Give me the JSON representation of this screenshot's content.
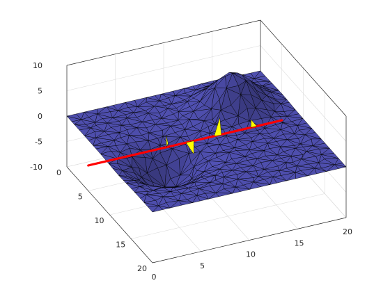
{
  "chart_data": {
    "type": "surface-3d",
    "xlim": [
      0,
      20
    ],
    "ylim": [
      0,
      20
    ],
    "zlim": [
      -10,
      10
    ],
    "xticks": [
      "0",
      "5",
      "10",
      "15",
      "20"
    ],
    "yticks": [
      "0",
      "5",
      "10",
      "15",
      "20"
    ],
    "zticks": [
      "10",
      "5",
      "0",
      "-5",
      "-10"
    ],
    "grid": true,
    "surface": {
      "kind": "triangulated mesh",
      "face_color": "#4b4ba6",
      "edge_color": "#000000",
      "features": [
        {
          "x": 5,
          "y": 12,
          "z": -6.5,
          "shape": "dip"
        },
        {
          "x": 15,
          "y": 5,
          "z": 6.5,
          "shape": "peak"
        }
      ]
    },
    "cut_line": {
      "color": "#ff0000",
      "points": [
        {
          "x": 0,
          "y": 5,
          "z": -5
        },
        {
          "x": 20,
          "y": 5,
          "z": -5
        }
      ]
    },
    "intersection_color": "#ffff00"
  }
}
